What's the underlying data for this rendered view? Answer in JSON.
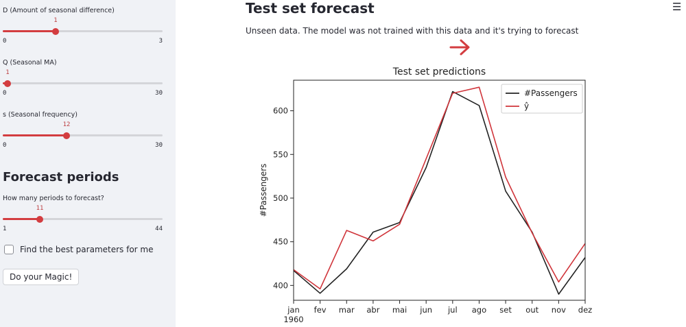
{
  "sidebar": {
    "sliders": [
      {
        "label": "D (Amount of seasonal difference)",
        "value": "1",
        "min": "0",
        "max": "3",
        "fraction": 0.3333
      },
      {
        "label": "Q (Seasonal MA)",
        "value": "1",
        "min": "0",
        "max": "30",
        "fraction": 0.0333
      },
      {
        "label": "s (Seasonal frequency)",
        "value": "12",
        "min": "0",
        "max": "30",
        "fraction": 0.4
      }
    ],
    "forecast_heading": "Forecast periods",
    "periods_slider": {
      "label": "How many periods to forecast?",
      "value": "11",
      "min": "1",
      "max": "44",
      "fraction": 0.2326
    },
    "best_params_checkbox": {
      "label": "Find the best parameters for me",
      "checked": false
    },
    "magic_button": "Do your Magic!"
  },
  "main": {
    "title": "Test set forecast",
    "description": "Unseen data. The model was not trained with this data and it's trying to forecast",
    "menu_icon": "☰",
    "arrow_color": "#d33d40"
  },
  "chart_data": {
    "type": "line",
    "title": "Test set predictions",
    "ylabel": "#Passengers",
    "xlabel": "",
    "categories": [
      "jan\n1960",
      "fev",
      "mar",
      "abr",
      "mai",
      "jun",
      "jul",
      "ago",
      "set",
      "out",
      "nov",
      "dez"
    ],
    "series": [
      {
        "name": "#Passengers",
        "color": "#222222",
        "values": [
          417,
          391,
          419,
          461,
          472,
          535,
          622,
          606,
          508,
          461,
          390,
          432
        ]
      },
      {
        "name": "ŷ",
        "color": "#d0343a",
        "values": [
          418,
          396,
          463,
          451,
          470,
          545,
          620,
          627,
          524,
          460,
          404,
          448
        ]
      }
    ],
    "yticks": [
      400,
      450,
      500,
      550,
      600
    ],
    "ylim": [
      383,
      635
    ],
    "grid": false,
    "legend": "upper right"
  }
}
